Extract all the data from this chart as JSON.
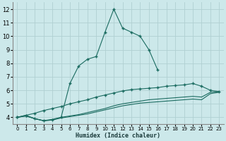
{
  "xlabel": "Humidex (Indice chaleur)",
  "bg_color": "#cce8ea",
  "grid_color": "#b0d0d2",
  "line_color": "#1a6b60",
  "xlim": [
    -0.5,
    23.5
  ],
  "ylim": [
    3.5,
    12.5
  ],
  "yticks": [
    4,
    5,
    6,
    7,
    8,
    9,
    10,
    11,
    12
  ],
  "xticks": [
    0,
    1,
    2,
    3,
    4,
    5,
    6,
    7,
    8,
    9,
    10,
    11,
    12,
    13,
    14,
    15,
    16,
    17,
    18,
    19,
    20,
    21,
    22,
    23
  ],
  "series": [
    {
      "x": [
        0,
        1,
        2,
        3,
        4,
        5,
        6,
        7,
        8,
        9,
        10,
        11,
        12,
        13,
        14,
        15,
        16,
        17,
        18,
        19,
        20,
        21,
        22,
        23
      ],
      "y": [
        4.0,
        4.15,
        3.9,
        3.75,
        3.8,
        4.0,
        6.5,
        7.8,
        8.3,
        8.5,
        10.3,
        12.0,
        10.6,
        10.3,
        10.0,
        9.0,
        7.5,
        null,
        null,
        null,
        null,
        null,
        null,
        null
      ],
      "has_markers": true
    },
    {
      "x": [
        16,
        17,
        18,
        19,
        20,
        21,
        22,
        23
      ],
      "y": [
        7.5,
        null,
        null,
        null,
        null,
        null,
        null,
        null
      ],
      "has_markers": false
    },
    {
      "x": [
        0,
        1,
        2,
        3,
        4,
        5,
        6,
        7,
        8,
        9,
        10,
        11,
        12,
        13,
        14,
        15,
        16,
        17,
        18,
        19,
        20,
        21,
        22,
        23
      ],
      "y": [
        4.0,
        4.15,
        4.3,
        4.5,
        4.65,
        4.8,
        5.0,
        5.15,
        5.3,
        5.5,
        5.65,
        5.8,
        5.95,
        6.05,
        6.1,
        6.15,
        6.2,
        6.3,
        6.35,
        6.4,
        6.5,
        6.3,
        6.0,
        5.9
      ],
      "has_markers": true
    },
    {
      "x": [
        0,
        1,
        2,
        3,
        4,
        5,
        6,
        7,
        8,
        9,
        10,
        11,
        12,
        13,
        14,
        15,
        16,
        17,
        18,
        19,
        20,
        21,
        22,
        23
      ],
      "y": [
        4.0,
        4.1,
        3.9,
        3.75,
        3.85,
        4.0,
        4.1,
        4.2,
        4.35,
        4.5,
        4.65,
        4.85,
        5.0,
        5.1,
        5.2,
        5.3,
        5.35,
        5.4,
        5.45,
        5.5,
        5.55,
        5.5,
        5.85,
        5.9
      ],
      "has_markers": false
    },
    {
      "x": [
        0,
        1,
        2,
        3,
        4,
        5,
        6,
        7,
        8,
        9,
        10,
        11,
        12,
        13,
        14,
        15,
        16,
        17,
        18,
        19,
        20,
        21,
        22,
        23
      ],
      "y": [
        4.0,
        4.1,
        3.9,
        3.75,
        3.8,
        3.95,
        4.05,
        4.15,
        4.25,
        4.4,
        4.55,
        4.7,
        4.85,
        4.95,
        5.05,
        5.1,
        5.15,
        5.2,
        5.25,
        5.3,
        5.35,
        5.3,
        5.75,
        5.85
      ],
      "has_markers": false
    }
  ]
}
